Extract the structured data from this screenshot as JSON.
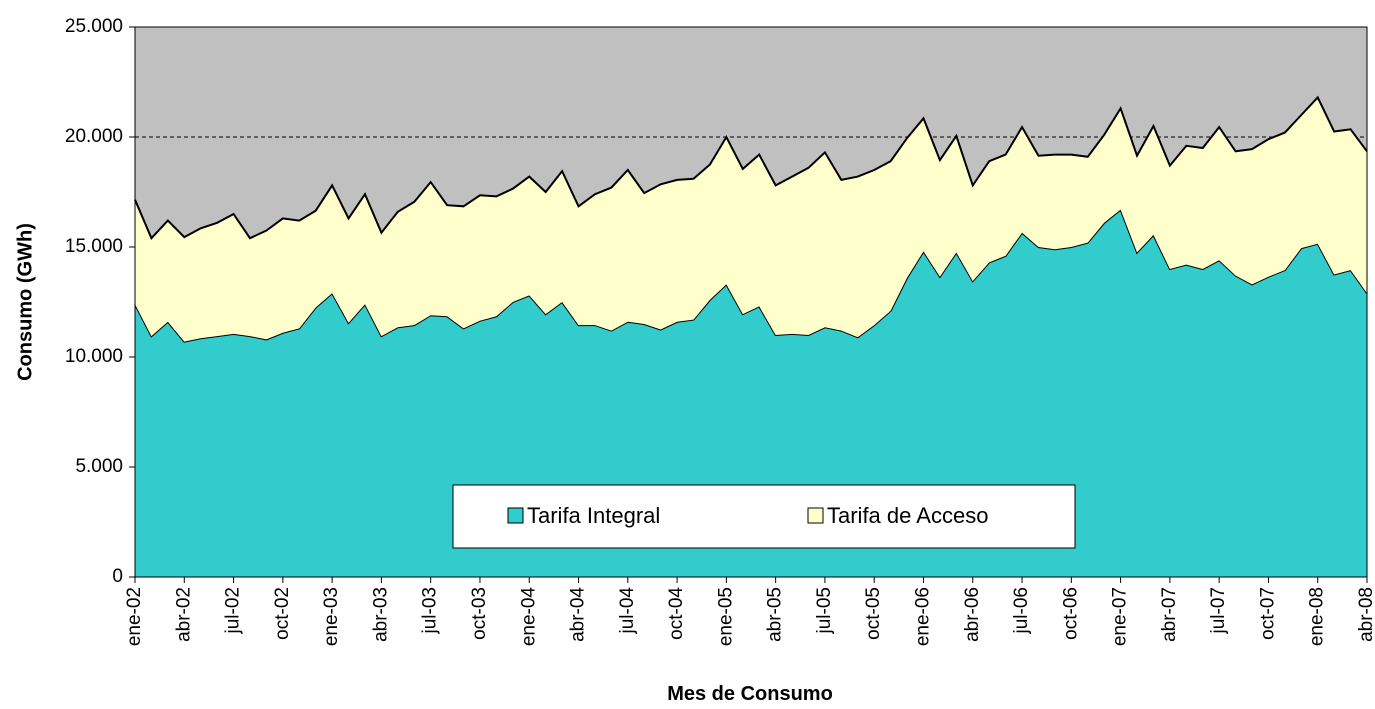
{
  "chart_data": {
    "type": "stacked_area",
    "x_label": "Mes de Consumo",
    "y_label": "Consumo (GWh)",
    "categories": [
      "ene-02",
      null,
      null,
      "abr-02",
      null,
      null,
      "jul-02",
      null,
      null,
      "oct-02",
      null,
      null,
      "ene-03",
      null,
      null,
      "abr-03",
      null,
      null,
      "jul-03",
      null,
      null,
      "oct-03",
      null,
      null,
      "ene-04",
      null,
      null,
      "abr-04",
      null,
      null,
      "jul-04",
      null,
      null,
      "oct-04",
      null,
      null,
      "ene-05",
      null,
      null,
      "abr-05",
      null,
      null,
      "jul-05",
      null,
      null,
      "oct-05",
      null,
      null,
      "ene-06",
      null,
      null,
      "abr-06",
      null,
      null,
      "jul-06",
      null,
      null,
      "oct-06",
      null,
      null,
      "ene-07",
      null,
      null,
      "abr-07",
      null,
      null,
      "jul-07",
      null,
      null,
      "oct-07",
      null,
      null,
      "ene-08",
      null,
      null,
      "abr-08"
    ],
    "series": [
      {
        "name": "Tarifa Integral",
        "color": "#33cccc",
        "values": [
          12400,
          10950,
          11600,
          10700,
          10850,
          10950,
          11050,
          10950,
          10800,
          11100,
          11300,
          12250,
          12900,
          11550,
          12400,
          10950,
          11350,
          11450,
          11900,
          11850,
          11300,
          11650,
          11850,
          12500,
          12800,
          11950,
          12500,
          11450,
          11450,
          11200,
          11600,
          11500,
          11250,
          11600,
          11700,
          12600,
          13300,
          11950,
          12300,
          11000,
          11050,
          11000,
          11350,
          11200,
          10900,
          11450,
          12100,
          13600,
          14800,
          13650,
          14750,
          13450,
          14300,
          14600,
          15650,
          15000,
          14900,
          15000,
          15200,
          16100,
          16700,
          14750,
          15550,
          14000,
          14200,
          14000,
          14400,
          13700,
          13300,
          13650,
          13950,
          14950,
          15150,
          13750,
          13950,
          12900
        ]
      },
      {
        "name": "Tarifa de Acceso",
        "color": "#ffffcc",
        "values": [
          4750,
          4450,
          4600,
          4750,
          5000,
          5150,
          5450,
          4450,
          4950,
          5200,
          4900,
          4400,
          4900,
          4750,
          5000,
          4700,
          5250,
          5600,
          6050,
          5050,
          5550,
          5700,
          5450,
          5150,
          5400,
          5550,
          5950,
          5400,
          5950,
          6500,
          6900,
          5950,
          6600,
          6450,
          6400,
          6150,
          6700,
          6600,
          6900,
          6800,
          7150,
          7600,
          7950,
          6850,
          7300,
          7050,
          6800,
          6350,
          6050,
          5300,
          5300,
          4350,
          4600,
          4600,
          4800,
          4150,
          4300,
          4200,
          3900,
          4000,
          4600,
          4400,
          4950,
          4700,
          5400,
          5500,
          6050,
          5650,
          6150,
          6250,
          6250,
          6050,
          6650,
          6500,
          6400,
          6450
        ]
      }
    ],
    "ylim": [
      0,
      25000
    ],
    "yticks": [
      0,
      {
        "value": 5000,
        "label": "5.000"
      },
      {
        "value": 10000,
        "label": "10.000"
      },
      {
        "value": 15000,
        "label": "15.000"
      },
      {
        "value": 20000,
        "label": "20.000"
      },
      {
        "value": 25000,
        "label": "25.000"
      }
    ],
    "grid": true,
    "plot_background": "#c0c0c0",
    "legend": "bottom"
  }
}
